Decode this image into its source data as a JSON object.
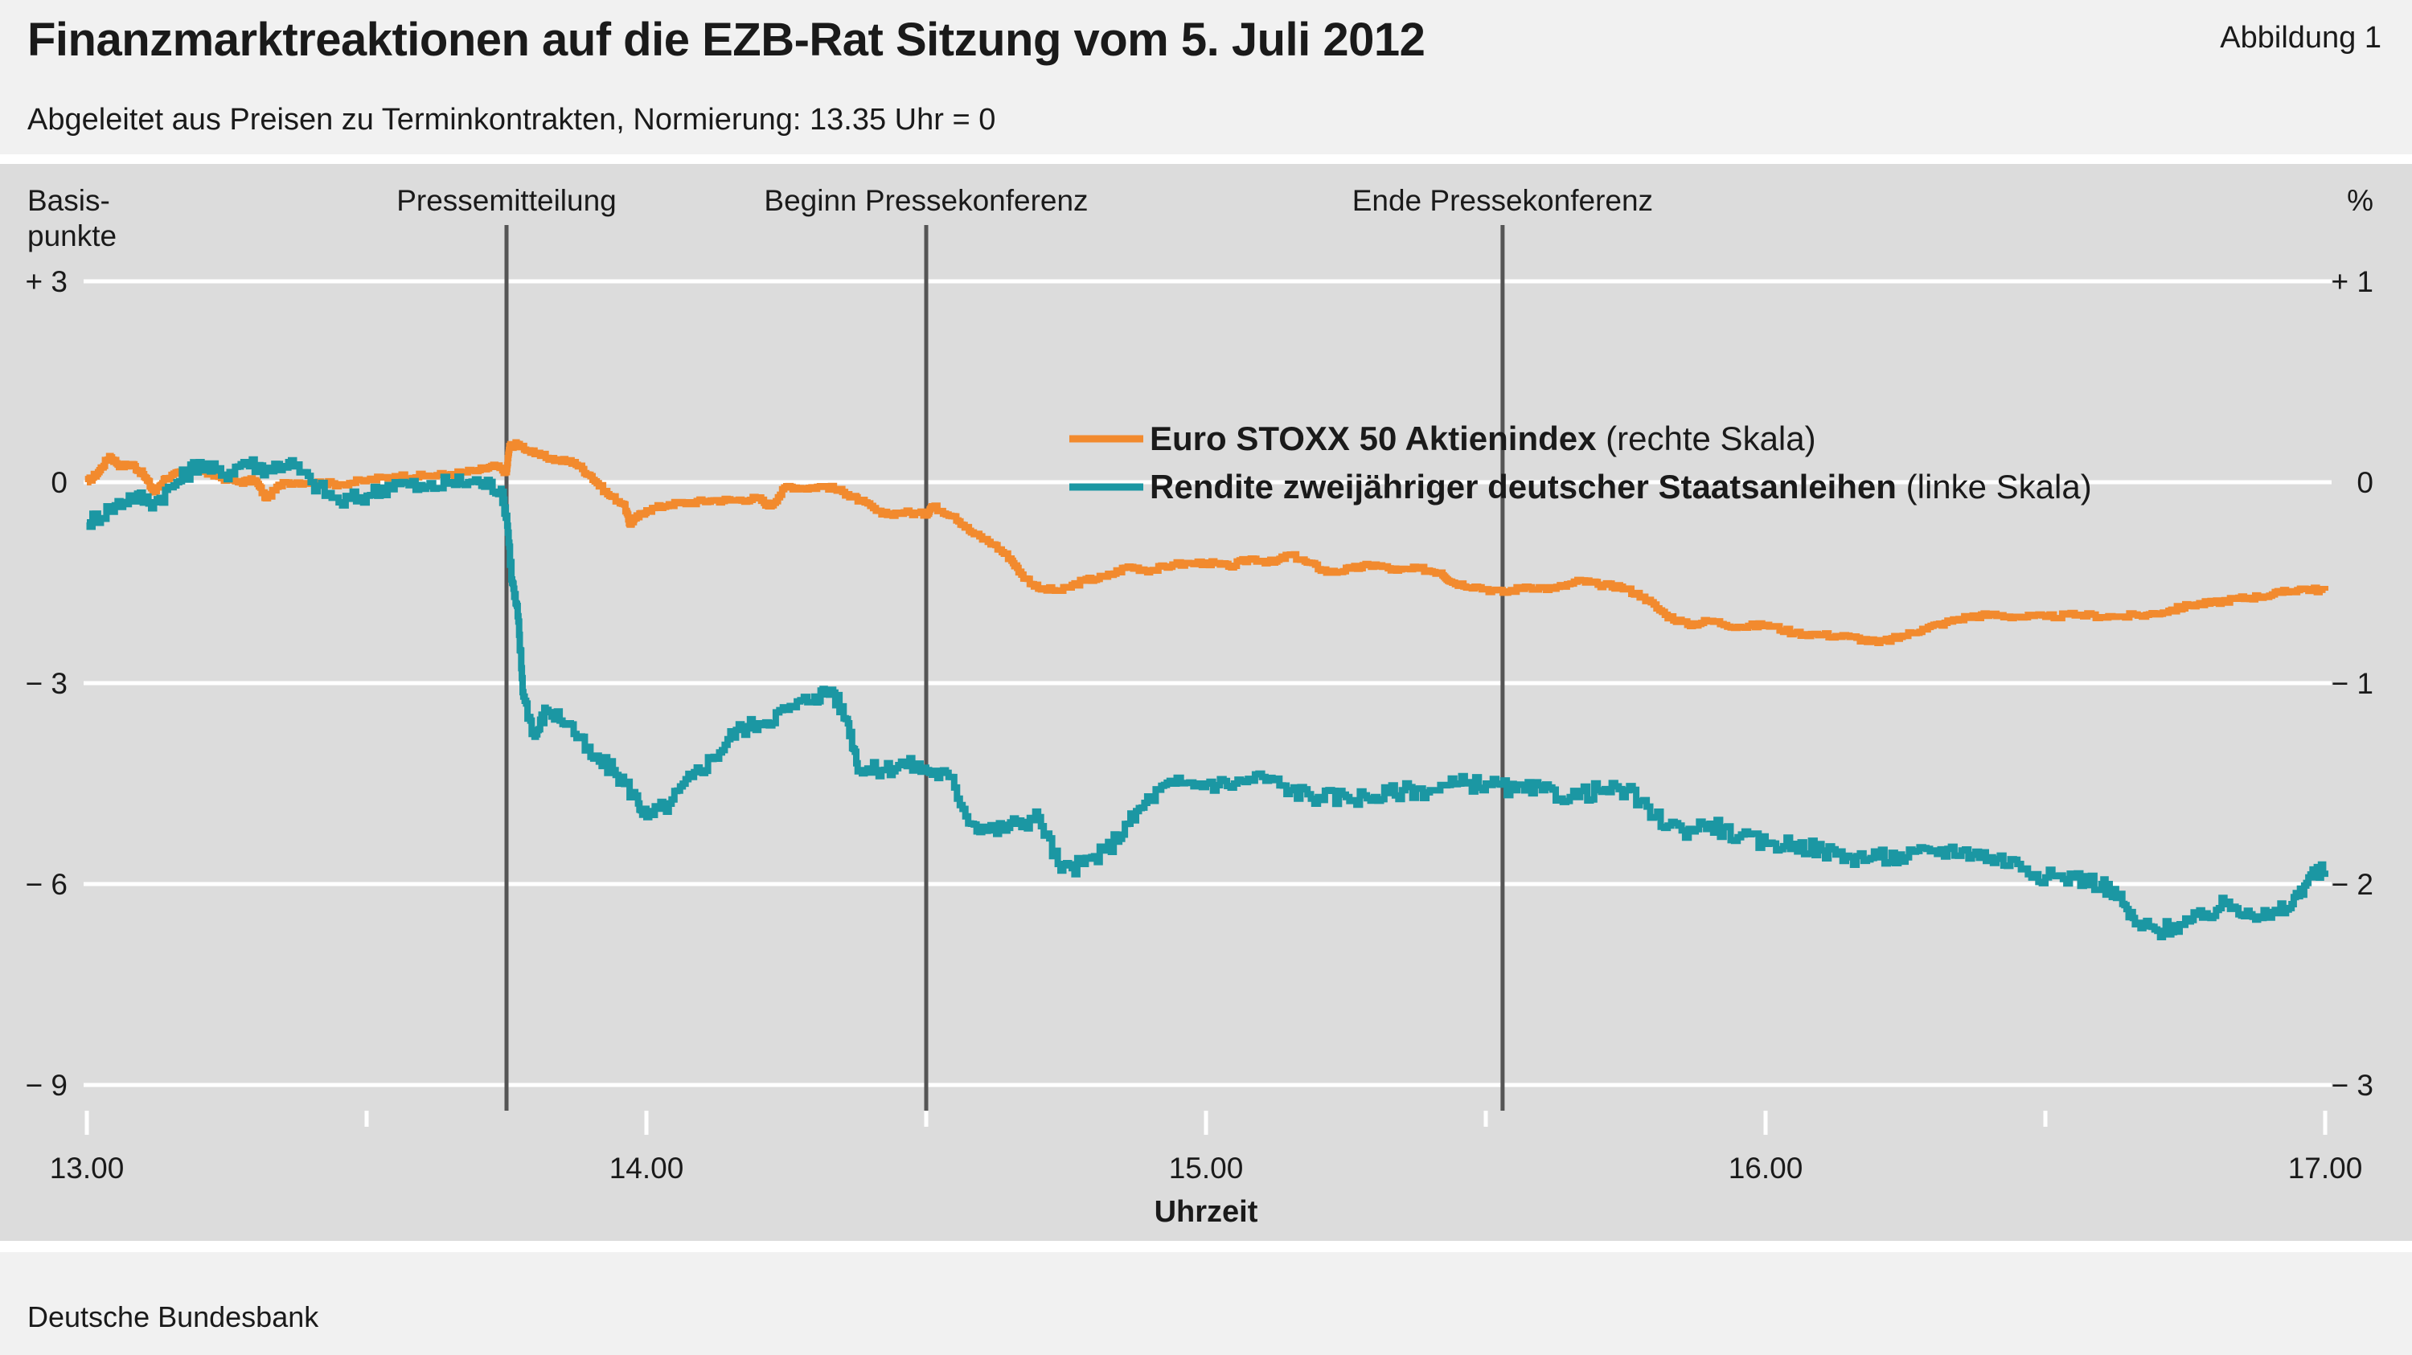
{
  "header": {
    "title": "Finanzmarktreaktionen auf die EZB-Rat Sitzung vom 5. Juli 2012",
    "figure_label": "Abbildung 1",
    "subtitle": "Abgeleitet aus Preisen zu Terminkontrakten, Normierung: 13.35 Uhr = 0"
  },
  "footer": {
    "source": "Deutsche Bundesbank"
  },
  "colors": {
    "stoxx": "#f28a2e",
    "yield": "#1b97a3",
    "event_line": "#555555",
    "grid": "#ffffff",
    "panel": "#dcdcdc"
  },
  "chart_data": {
    "type": "line",
    "xlabel": "Uhrzeit",
    "xlim": [
      13.0,
      17.0
    ],
    "x_ticks": [
      {
        "value": 13.0,
        "label": "13.00"
      },
      {
        "value": 14.0,
        "label": "14.00"
      },
      {
        "value": 15.0,
        "label": "15.00"
      },
      {
        "value": 16.0,
        "label": "16.00"
      },
      {
        "value": 17.0,
        "label": "17.00"
      }
    ],
    "x_minor_ticks": [
      13.5,
      14.5,
      15.5,
      16.5
    ],
    "left_axis": {
      "label_line1": "Basis-",
      "label_line2": "punkte",
      "lim": [
        -9,
        3
      ],
      "ticks": [
        {
          "value": 3,
          "label": "+ 3"
        },
        {
          "value": 0,
          "label": "0"
        },
        {
          "value": -3,
          "label": "− 3"
        },
        {
          "value": -6,
          "label": "− 6"
        },
        {
          "value": -9,
          "label": "− 9"
        }
      ]
    },
    "right_axis": {
      "label": "%",
      "lim": [
        -3,
        1
      ],
      "ticks": [
        {
          "value": 1,
          "label": "+ 1"
        },
        {
          "value": 0,
          "label": "0"
        },
        {
          "value": -1,
          "label": "− 1"
        },
        {
          "value": -2,
          "label": "− 2"
        },
        {
          "value": -3,
          "label": "− 3"
        }
      ]
    },
    "grid": true,
    "events": [
      {
        "x": 13.75,
        "label": "Pressemitteilung"
      },
      {
        "x": 14.5,
        "label": "Beginn Pressekonferenz"
      },
      {
        "x": 15.53,
        "label": "Ende Pressekonferenz"
      }
    ],
    "legend_position": "top-center",
    "series": [
      {
        "name": "Euro STOXX 50 Aktienindex",
        "name_suffix": "(rechte Skala)",
        "axis": "right",
        "color_key": "stoxx",
        "points": [
          [
            13.0,
            0.0
          ],
          [
            13.02,
            0.05
          ],
          [
            13.04,
            0.13
          ],
          [
            13.06,
            0.08
          ],
          [
            13.08,
            0.09
          ],
          [
            13.1,
            0.04
          ],
          [
            13.12,
            -0.05
          ],
          [
            13.14,
            0.02
          ],
          [
            13.17,
            0.05
          ],
          [
            13.2,
            0.06
          ],
          [
            13.23,
            0.03
          ],
          [
            13.27,
            0.0
          ],
          [
            13.3,
            0.01
          ],
          [
            13.32,
            -0.08
          ],
          [
            13.35,
            0.0
          ],
          [
            13.4,
            0.0
          ],
          [
            13.45,
            -0.01
          ],
          [
            13.5,
            0.01
          ],
          [
            13.55,
            0.03
          ],
          [
            13.6,
            0.03
          ],
          [
            13.65,
            0.04
          ],
          [
            13.7,
            0.06
          ],
          [
            13.73,
            0.08
          ],
          [
            13.75,
            0.05
          ],
          [
            13.755,
            0.18
          ],
          [
            13.77,
            0.19
          ],
          [
            13.8,
            0.14
          ],
          [
            13.84,
            0.11
          ],
          [
            13.87,
            0.1
          ],
          [
            13.9,
            0.03
          ],
          [
            13.93,
            -0.06
          ],
          [
            13.96,
            -0.11
          ],
          [
            13.97,
            -0.21
          ],
          [
            13.98,
            -0.18
          ],
          [
            14.0,
            -0.14
          ],
          [
            14.04,
            -0.11
          ],
          [
            14.08,
            -0.1
          ],
          [
            14.12,
            -0.09
          ],
          [
            14.16,
            -0.09
          ],
          [
            14.2,
            -0.08
          ],
          [
            14.22,
            -0.12
          ],
          [
            14.25,
            -0.02
          ],
          [
            14.28,
            -0.03
          ],
          [
            14.32,
            -0.02
          ],
          [
            14.36,
            -0.06
          ],
          [
            14.38,
            -0.09
          ],
          [
            14.42,
            -0.16
          ],
          [
            14.46,
            -0.15
          ],
          [
            14.5,
            -0.16
          ],
          [
            14.51,
            -0.12
          ],
          [
            14.55,
            -0.17
          ],
          [
            14.58,
            -0.25
          ],
          [
            14.62,
            -0.31
          ],
          [
            14.65,
            -0.38
          ],
          [
            14.67,
            -0.46
          ],
          [
            14.7,
            -0.53
          ],
          [
            14.74,
            -0.54
          ],
          [
            14.78,
            -0.49
          ],
          [
            14.82,
            -0.47
          ],
          [
            14.86,
            -0.42
          ],
          [
            14.9,
            -0.44
          ],
          [
            14.94,
            -0.41
          ],
          [
            15.0,
            -0.4
          ],
          [
            15.04,
            -0.42
          ],
          [
            15.08,
            -0.38
          ],
          [
            15.12,
            -0.4
          ],
          [
            15.15,
            -0.36
          ],
          [
            15.18,
            -0.4
          ],
          [
            15.22,
            -0.45
          ],
          [
            15.26,
            -0.43
          ],
          [
            15.3,
            -0.41
          ],
          [
            15.34,
            -0.44
          ],
          [
            15.38,
            -0.43
          ],
          [
            15.42,
            -0.45
          ],
          [
            15.44,
            -0.5
          ],
          [
            15.48,
            -0.52
          ],
          [
            15.53,
            -0.55
          ],
          [
            15.57,
            -0.52
          ],
          [
            15.62,
            -0.53
          ],
          [
            15.67,
            -0.49
          ],
          [
            15.7,
            -0.51
          ],
          [
            15.74,
            -0.52
          ],
          [
            15.78,
            -0.57
          ],
          [
            15.82,
            -0.66
          ],
          [
            15.86,
            -0.71
          ],
          [
            15.9,
            -0.69
          ],
          [
            15.95,
            -0.72
          ],
          [
            16.0,
            -0.71
          ],
          [
            16.05,
            -0.75
          ],
          [
            16.1,
            -0.76
          ],
          [
            16.15,
            -0.77
          ],
          [
            16.2,
            -0.8
          ],
          [
            16.24,
            -0.77
          ],
          [
            16.28,
            -0.73
          ],
          [
            16.32,
            -0.7
          ],
          [
            16.36,
            -0.67
          ],
          [
            16.4,
            -0.66
          ],
          [
            16.45,
            -0.67
          ],
          [
            16.5,
            -0.67
          ],
          [
            16.56,
            -0.66
          ],
          [
            16.62,
            -0.67
          ],
          [
            16.68,
            -0.66
          ],
          [
            16.72,
            -0.64
          ],
          [
            16.76,
            -0.61
          ],
          [
            16.8,
            -0.6
          ],
          [
            16.84,
            -0.58
          ],
          [
            16.88,
            -0.57
          ],
          [
            16.92,
            -0.55
          ],
          [
            16.96,
            -0.53
          ],
          [
            17.0,
            -0.54
          ]
        ]
      },
      {
        "name": "Rendite zweijähriger deutscher Staatsanleihen",
        "name_suffix": "(linke Skala)",
        "axis": "left",
        "color_key": "yield",
        "points": [
          [
            13.0,
            -0.6
          ],
          [
            13.04,
            -0.4
          ],
          [
            13.08,
            -0.2
          ],
          [
            13.12,
            -0.3
          ],
          [
            13.16,
            0.0
          ],
          [
            13.2,
            0.3
          ],
          [
            13.24,
            0.1
          ],
          [
            13.28,
            0.3
          ],
          [
            13.32,
            0.2
          ],
          [
            13.36,
            0.3
          ],
          [
            13.4,
            0.0
          ],
          [
            13.45,
            -0.3
          ],
          [
            13.5,
            -0.2
          ],
          [
            13.55,
            0.0
          ],
          [
            13.6,
            -0.1
          ],
          [
            13.65,
            0.0
          ],
          [
            13.7,
            0.0
          ],
          [
            13.74,
            -0.1
          ],
          [
            13.75,
            -0.5
          ],
          [
            13.76,
            -1.5
          ],
          [
            13.77,
            -2.0
          ],
          [
            13.78,
            -3.2
          ],
          [
            13.8,
            -3.8
          ],
          [
            13.82,
            -3.4
          ],
          [
            13.86,
            -3.6
          ],
          [
            13.9,
            -4.1
          ],
          [
            13.94,
            -4.3
          ],
          [
            13.98,
            -4.7
          ],
          [
            14.0,
            -5.0
          ],
          [
            14.04,
            -4.8
          ],
          [
            14.08,
            -4.4
          ],
          [
            14.12,
            -4.1
          ],
          [
            14.16,
            -3.7
          ],
          [
            14.2,
            -3.6
          ],
          [
            14.25,
            -3.4
          ],
          [
            14.3,
            -3.2
          ],
          [
            14.33,
            -3.1
          ],
          [
            14.36,
            -3.6
          ],
          [
            14.38,
            -4.3
          ],
          [
            14.42,
            -4.3
          ],
          [
            14.46,
            -4.2
          ],
          [
            14.5,
            -4.3
          ],
          [
            14.54,
            -4.4
          ],
          [
            14.58,
            -5.1
          ],
          [
            14.62,
            -5.2
          ],
          [
            14.66,
            -5.1
          ],
          [
            14.7,
            -5.0
          ],
          [
            14.74,
            -5.8
          ],
          [
            14.78,
            -5.7
          ],
          [
            14.82,
            -5.5
          ],
          [
            14.86,
            -5.1
          ],
          [
            14.9,
            -4.7
          ],
          [
            14.94,
            -4.5
          ],
          [
            15.0,
            -4.5
          ],
          [
            15.05,
            -4.5
          ],
          [
            15.1,
            -4.4
          ],
          [
            15.15,
            -4.6
          ],
          [
            15.2,
            -4.7
          ],
          [
            15.25,
            -4.7
          ],
          [
            15.3,
            -4.7
          ],
          [
            15.35,
            -4.6
          ],
          [
            15.4,
            -4.6
          ],
          [
            15.45,
            -4.5
          ],
          [
            15.5,
            -4.5
          ],
          [
            15.55,
            -4.6
          ],
          [
            15.6,
            -4.6
          ],
          [
            15.65,
            -4.7
          ],
          [
            15.7,
            -4.6
          ],
          [
            15.75,
            -4.6
          ],
          [
            15.8,
            -5.0
          ],
          [
            15.85,
            -5.2
          ],
          [
            15.9,
            -5.1
          ],
          [
            15.95,
            -5.3
          ],
          [
            16.0,
            -5.4
          ],
          [
            16.05,
            -5.4
          ],
          [
            16.1,
            -5.5
          ],
          [
            16.15,
            -5.6
          ],
          [
            16.2,
            -5.6
          ],
          [
            16.25,
            -5.6
          ],
          [
            16.3,
            -5.5
          ],
          [
            16.35,
            -5.5
          ],
          [
            16.4,
            -5.6
          ],
          [
            16.45,
            -5.7
          ],
          [
            16.5,
            -5.9
          ],
          [
            16.55,
            -5.9
          ],
          [
            16.6,
            -6.0
          ],
          [
            16.63,
            -6.2
          ],
          [
            16.66,
            -6.6
          ],
          [
            16.7,
            -6.7
          ],
          [
            16.74,
            -6.6
          ],
          [
            16.78,
            -6.5
          ],
          [
            16.82,
            -6.3
          ],
          [
            16.86,
            -6.4
          ],
          [
            16.9,
            -6.5
          ],
          [
            16.94,
            -6.3
          ],
          [
            16.97,
            -5.9
          ],
          [
            17.0,
            -5.8
          ]
        ]
      }
    ]
  }
}
